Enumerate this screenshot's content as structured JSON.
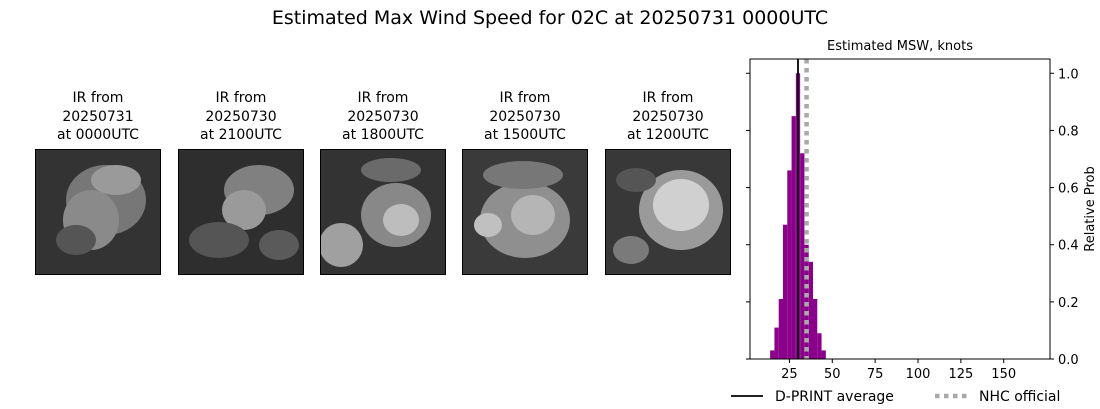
{
  "title": "Estimated Max Wind Speed for 02C at 20250731 0000UTC",
  "ir_panels": [
    {
      "line1": "IR from",
      "line2": "20250731",
      "line3": "at 0000UTC"
    },
    {
      "line1": "IR from",
      "line2": "20250730",
      "line3": "at 2100UTC"
    },
    {
      "line1": "IR from",
      "line2": "20250730",
      "line3": "at 1800UTC"
    },
    {
      "line1": "IR from",
      "line2": "20250730",
      "line3": "at 1500UTC"
    },
    {
      "line1": "IR from",
      "line2": "20250730",
      "line3": "at 1200UTC"
    }
  ],
  "chart_data": {
    "type": "bar",
    "title": "Estimated MSW, knots",
    "xlabel": "",
    "ylabel": "Relative Prob",
    "xlim": [
      2,
      177
    ],
    "ylim": [
      0,
      1.05
    ],
    "xticks": [
      25,
      50,
      75,
      100,
      125,
      150
    ],
    "yticks": [
      0.0,
      0.2,
      0.4,
      0.6,
      0.8,
      1.0
    ],
    "y_axis_side": "right",
    "bar_color": "#8b008b",
    "bin_width": 2.5,
    "bins": [
      {
        "x": 15,
        "value": 0.03
      },
      {
        "x": 17.5,
        "value": 0.11
      },
      {
        "x": 20,
        "value": 0.21
      },
      {
        "x": 22.5,
        "value": 0.47
      },
      {
        "x": 25,
        "value": 0.66
      },
      {
        "x": 27.5,
        "value": 0.85
      },
      {
        "x": 30,
        "value": 1.0
      },
      {
        "x": 32.5,
        "value": 0.72
      },
      {
        "x": 35,
        "value": 0.4
      },
      {
        "x": 37.5,
        "value": 0.34
      },
      {
        "x": 40,
        "value": 0.21
      },
      {
        "x": 42.5,
        "value": 0.09
      },
      {
        "x": 45,
        "value": 0.03
      }
    ],
    "lines": [
      {
        "name": "D-PRINT average",
        "x": 30,
        "style": "solid",
        "color": "#000000"
      },
      {
        "name": "NHC official",
        "x": 35,
        "style": "dotted",
        "color": "#a9a9a9"
      }
    ],
    "legend_placement": "bottom"
  }
}
